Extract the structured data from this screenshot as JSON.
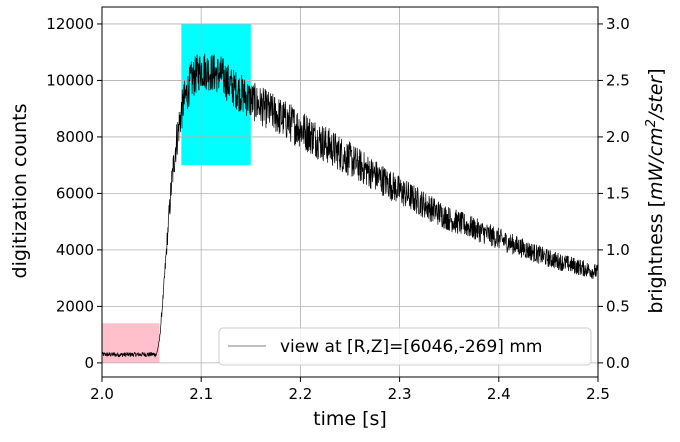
{
  "chart_data": {
    "type": "line",
    "xlabel": "time [s]",
    "ylabel": "digitization counts",
    "ylabel_right_parts": [
      "brightness [",
      "mW/cm",
      "2",
      "/ster",
      "]"
    ],
    "xlim": [
      2.0,
      2.5
    ],
    "ylim": [
      -500,
      12600
    ],
    "ylim_right": [
      -0.125,
      3.15
    ],
    "x_ticks": [
      2.0,
      2.1,
      2.2,
      2.3,
      2.4,
      2.5
    ],
    "x_tick_labels": [
      "2.0",
      "2.1",
      "2.2",
      "2.3",
      "2.4",
      "2.5"
    ],
    "y_ticks": [
      0,
      2000,
      4000,
      6000,
      8000,
      10000,
      12000
    ],
    "y_tick_labels": [
      "0",
      "2000",
      "4000",
      "6000",
      "8000",
      "10000",
      "12000"
    ],
    "y_right_ticks": [
      0.0,
      0.5,
      1.0,
      1.5,
      2.0,
      2.5,
      3.0
    ],
    "y_right_tick_labels": [
      "0.0",
      "0.5",
      "1.0",
      "1.5",
      "2.0",
      "2.5",
      "3.0"
    ],
    "grid": true,
    "legend_position": "lower-right",
    "series": [
      {
        "name": "view at [R,Z]=[6046,-269] mm",
        "color": "#000000",
        "x": [
          2.0,
          2.02,
          2.04,
          2.055,
          2.058,
          2.062,
          2.066,
          2.07,
          2.074,
          2.078,
          2.082,
          2.09,
          2.1,
          2.11,
          2.12,
          2.13,
          2.15,
          2.175,
          2.2,
          2.25,
          2.3,
          2.35,
          2.4,
          2.45,
          2.5
        ],
        "y": [
          300,
          290,
          300,
          300,
          800,
          2500,
          4500,
          6300,
          7600,
          8500,
          9200,
          10000,
          10400,
          10300,
          10200,
          9800,
          9300,
          8800,
          8300,
          7200,
          6100,
          5100,
          4400,
          3700,
          3200
        ],
        "noise_amplitude": 700
      }
    ],
    "shaded_regions": [
      {
        "x": [
          2.0,
          2.058
        ],
        "y": [
          0,
          1400
        ],
        "color": "#ffc0cb"
      },
      {
        "x": [
          2.08,
          2.15
        ],
        "y": [
          7000,
          12000
        ],
        "color": "#00ffff"
      }
    ]
  }
}
